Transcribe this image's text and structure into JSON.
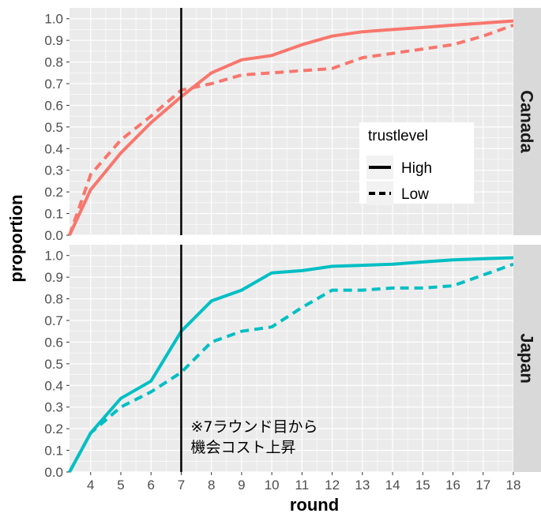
{
  "chart_data": {
    "type": "line",
    "xlabel": "round",
    "ylabel": "proportion",
    "xlim": [
      3.3,
      18
    ],
    "ylim": [
      0,
      1.05
    ],
    "x_ticks": [
      "4",
      "5",
      "6",
      "7",
      "8",
      "9",
      "10",
      "11",
      "12",
      "13",
      "14",
      "15",
      "16",
      "17",
      "18"
    ],
    "y_ticks": [
      "0.0",
      "0.1",
      "0.2",
      "0.3",
      "0.4",
      "0.5",
      "0.6",
      "0.7",
      "0.8",
      "0.9",
      "1.0"
    ],
    "legend": {
      "title": "trustlevel",
      "placement": "right",
      "entries": [
        {
          "label": "High",
          "linetype": "solid"
        },
        {
          "label": "Low",
          "linetype": "dashed"
        }
      ]
    },
    "reference_line": {
      "x": 7,
      "label_lines": [
        "※7ラウンド目から",
        "機会コスト上昇"
      ]
    },
    "panels": [
      {
        "strip": "Canada",
        "color": "#F8766D",
        "series": [
          {
            "name": "High",
            "linetype": "solid",
            "x": [
              3.3,
              4,
              5,
              6,
              7,
              8,
              9,
              10,
              11,
              12,
              13,
              14,
              15,
              16,
              17,
              18
            ],
            "y": [
              0.0,
              0.21,
              0.38,
              0.52,
              0.64,
              0.75,
              0.81,
              0.83,
              0.88,
              0.92,
              0.94,
              0.95,
              0.96,
              0.97,
              0.98,
              0.99
            ]
          },
          {
            "name": "Low",
            "linetype": "dashed",
            "x": [
              3.3,
              4,
              5,
              6,
              7,
              8,
              9,
              10,
              11,
              12,
              13,
              14,
              15,
              16,
              17,
              18
            ],
            "y": [
              0.0,
              0.28,
              0.44,
              0.55,
              0.67,
              0.7,
              0.74,
              0.75,
              0.76,
              0.77,
              0.82,
              0.84,
              0.86,
              0.88,
              0.92,
              0.97
            ]
          }
        ]
      },
      {
        "strip": "Japan",
        "color": "#00BFC4",
        "series": [
          {
            "name": "High",
            "linetype": "solid",
            "x": [
              3.3,
              4,
              5,
              6,
              7,
              8,
              9,
              10,
              11,
              12,
              13,
              14,
              15,
              16,
              17,
              18
            ],
            "y": [
              0.0,
              0.18,
              0.34,
              0.42,
              0.65,
              0.79,
              0.84,
              0.92,
              0.93,
              0.95,
              0.955,
              0.96,
              0.97,
              0.98,
              0.985,
              0.99
            ]
          },
          {
            "name": "Low",
            "linetype": "dashed",
            "x": [
              3.3,
              4,
              5,
              6,
              7,
              8,
              9,
              10,
              11,
              12,
              13,
              14,
              15,
              16,
              17,
              18
            ],
            "y": [
              0.0,
              0.18,
              0.3,
              0.37,
              0.46,
              0.6,
              0.65,
              0.67,
              0.76,
              0.84,
              0.84,
              0.85,
              0.85,
              0.86,
              0.91,
              0.96
            ]
          }
        ]
      }
    ]
  }
}
